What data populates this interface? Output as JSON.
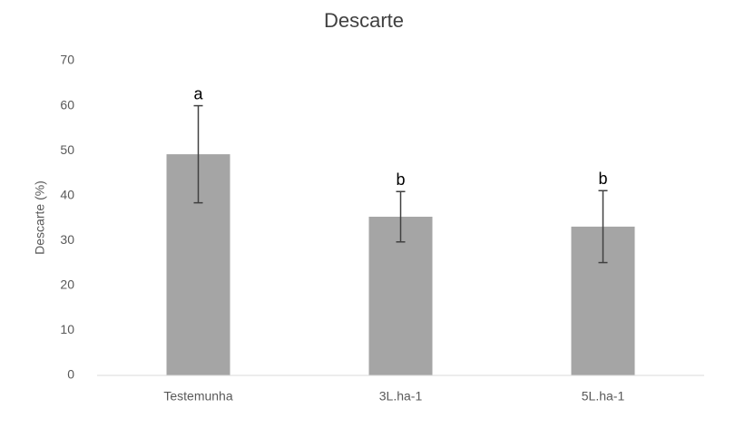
{
  "chart_data": {
    "type": "bar",
    "title": "Descarte",
    "ylabel": "Descarte (%)",
    "categories": [
      "Testemunha",
      "3L.ha-1",
      "5L.ha-1"
    ],
    "values": [
      49.2,
      35.3,
      33.1
    ],
    "errors": [
      10.8,
      5.6,
      8.0
    ],
    "annotations": [
      "a",
      "b",
      "b"
    ],
    "color": "#a5a5a5",
    "ylim": [
      0,
      70
    ],
    "yticks": [
      0,
      10,
      20,
      30,
      40,
      50,
      60,
      70
    ],
    "grid": false
  }
}
